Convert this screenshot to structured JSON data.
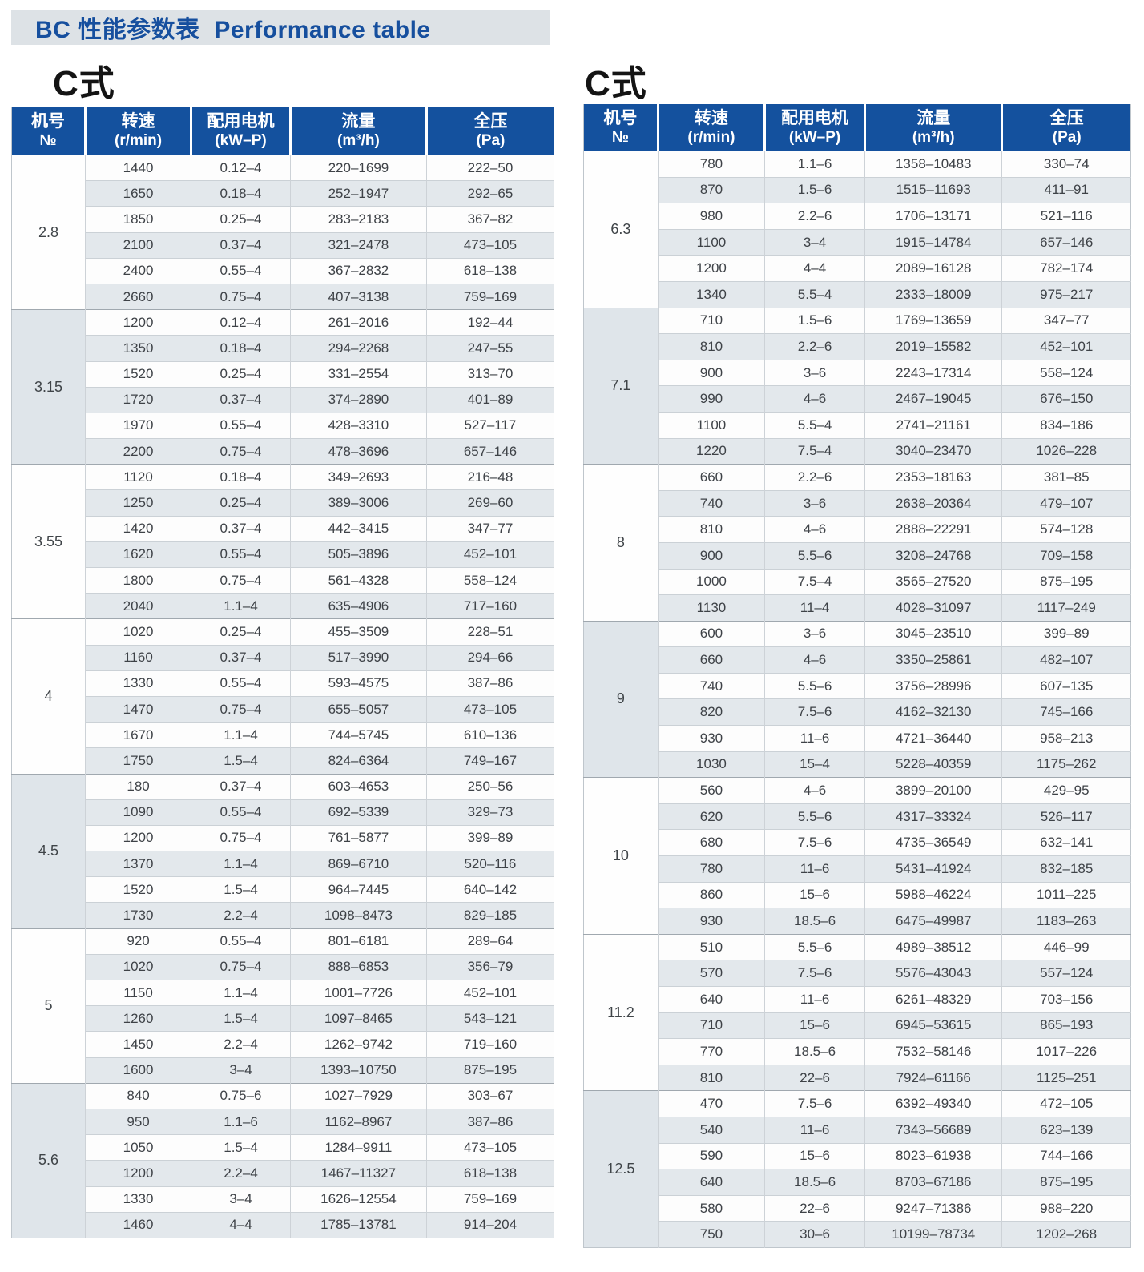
{
  "page": {
    "title": "BC 性能参数表  Performance table"
  },
  "columns": [
    {
      "zh": "机号",
      "sub": "№"
    },
    {
      "zh": "转速",
      "sub": "(r/min)"
    },
    {
      "zh": "配用电机",
      "sub": "(kW–P)"
    },
    {
      "zh": "流量",
      "sub": "(m³/h)"
    },
    {
      "zh": "全压",
      "sub": "(Pa)"
    }
  ],
  "colors": {
    "header_blue": "#14519e",
    "title_text_blue": "#164f9e",
    "title_bar_bg": "#dde2e6",
    "row_alt_bg": "#e3e8ec",
    "group_shade_bg": "#dfe5ea"
  },
  "tables": [
    {
      "heading": "C式",
      "sections": [
        {
          "no": "2.8",
          "shade": false,
          "rows": [
            [
              "1440",
              "0.12–4",
              "220–1699",
              "222–50"
            ],
            [
              "1650",
              "0.18–4",
              "252–1947",
              "292–65"
            ],
            [
              "1850",
              "0.25–4",
              "283–2183",
              "367–82"
            ],
            [
              "2100",
              "0.37–4",
              "321–2478",
              "473–105"
            ],
            [
              "2400",
              "0.55–4",
              "367–2832",
              "618–138"
            ],
            [
              "2660",
              "0.75–4",
              "407–3138",
              "759–169"
            ]
          ]
        },
        {
          "no": "3.15",
          "shade": true,
          "rows": [
            [
              "1200",
              "0.12–4",
              "261–2016",
              "192–44"
            ],
            [
              "1350",
              "0.18–4",
              "294–2268",
              "247–55"
            ],
            [
              "1520",
              "0.25–4",
              "331–2554",
              "313–70"
            ],
            [
              "1720",
              "0.37–4",
              "374–2890",
              "401–89"
            ],
            [
              "1970",
              "0.55–4",
              "428–3310",
              "527–117"
            ],
            [
              "2200",
              "0.75–4",
              "478–3696",
              "657–146"
            ]
          ]
        },
        {
          "no": "3.55",
          "shade": false,
          "rows": [
            [
              "1120",
              "0.18–4",
              "349–2693",
              "216–48"
            ],
            [
              "1250",
              "0.25–4",
              "389–3006",
              "269–60"
            ],
            [
              "1420",
              "0.37–4",
              "442–3415",
              "347–77"
            ],
            [
              "1620",
              "0.55–4",
              "505–3896",
              "452–101"
            ],
            [
              "1800",
              "0.75–4",
              "561–4328",
              "558–124"
            ],
            [
              "2040",
              "1.1–4",
              "635–4906",
              "717–160"
            ]
          ]
        },
        {
          "no": "4",
          "shade": false,
          "rows": [
            [
              "1020",
              "0.25–4",
              "455–3509",
              "228–51"
            ],
            [
              "1160",
              "0.37–4",
              "517–3990",
              "294–66"
            ],
            [
              "1330",
              "0.55–4",
              "593–4575",
              "387–86"
            ],
            [
              "1470",
              "0.75–4",
              "655–5057",
              "473–105"
            ],
            [
              "1670",
              "1.1–4",
              "744–5745",
              "610–136"
            ],
            [
              "1750",
              "1.5–4",
              "824–6364",
              "749–167"
            ]
          ]
        },
        {
          "no": "4.5",
          "shade": true,
          "rows": [
            [
              "180",
              "0.37–4",
              "603–4653",
              "250–56"
            ],
            [
              "1090",
              "0.55–4",
              "692–5339",
              "329–73"
            ],
            [
              "1200",
              "0.75–4",
              "761–5877",
              "399–89"
            ],
            [
              "1370",
              "1.1–4",
              "869–6710",
              "520–116"
            ],
            [
              "1520",
              "1.5–4",
              "964–7445",
              "640–142"
            ],
            [
              "1730",
              "2.2–4",
              "1098–8473",
              "829–185"
            ]
          ]
        },
        {
          "no": "5",
          "shade": false,
          "rows": [
            [
              "920",
              "0.55–4",
              "801–6181",
              "289–64"
            ],
            [
              "1020",
              "0.75–4",
              "888–6853",
              "356–79"
            ],
            [
              "1150",
              "1.1–4",
              "1001–7726",
              "452–101"
            ],
            [
              "1260",
              "1.5–4",
              "1097–8465",
              "543–121"
            ],
            [
              "1450",
              "2.2–4",
              "1262–9742",
              "719–160"
            ],
            [
              "1600",
              "3–4",
              "1393–10750",
              "875–195"
            ]
          ]
        },
        {
          "no": "5.6",
          "shade": true,
          "rows": [
            [
              "840",
              "0.75–6",
              "1027–7929",
              "303–67"
            ],
            [
              "950",
              "1.1–6",
              "1162–8967",
              "387–86"
            ],
            [
              "1050",
              "1.5–4",
              "1284–9911",
              "473–105"
            ],
            [
              "1200",
              "2.2–4",
              "1467–11327",
              "618–138"
            ],
            [
              "1330",
              "3–4",
              "1626–12554",
              "759–169"
            ],
            [
              "1460",
              "4–4",
              "1785–13781",
              "914–204"
            ]
          ]
        }
      ]
    },
    {
      "heading": "C式",
      "sections": [
        {
          "no": "6.3",
          "shade": false,
          "rows": [
            [
              "780",
              "1.1–6",
              "1358–10483",
              "330–74"
            ],
            [
              "870",
              "1.5–6",
              "1515–11693",
              "411–91"
            ],
            [
              "980",
              "2.2–6",
              "1706–13171",
              "521–116"
            ],
            [
              "1100",
              "3–4",
              "1915–14784",
              "657–146"
            ],
            [
              "1200",
              "4–4",
              "2089–16128",
              "782–174"
            ],
            [
              "1340",
              "5.5–4",
              "2333–18009",
              "975–217"
            ]
          ]
        },
        {
          "no": "7.1",
          "shade": true,
          "rows": [
            [
              "710",
              "1.5–6",
              "1769–13659",
              "347–77"
            ],
            [
              "810",
              "2.2–6",
              "2019–15582",
              "452–101"
            ],
            [
              "900",
              "3–6",
              "2243–17314",
              "558–124"
            ],
            [
              "990",
              "4–6",
              "2467–19045",
              "676–150"
            ],
            [
              "1100",
              "5.5–4",
              "2741–21161",
              "834–186"
            ],
            [
              "1220",
              "7.5–4",
              "3040–23470",
              "1026–228"
            ]
          ]
        },
        {
          "no": "8",
          "shade": false,
          "rows": [
            [
              "660",
              "2.2–6",
              "2353–18163",
              "381–85"
            ],
            [
              "740",
              "3–6",
              "2638–20364",
              "479–107"
            ],
            [
              "810",
              "4–6",
              "2888–22291",
              "574–128"
            ],
            [
              "900",
              "5.5–6",
              "3208–24768",
              "709–158"
            ],
            [
              "1000",
              "7.5–4",
              "3565–27520",
              "875–195"
            ],
            [
              "1130",
              "11–4",
              "4028–31097",
              "1117–249"
            ]
          ]
        },
        {
          "no": "9",
          "shade": true,
          "rows": [
            [
              "600",
              "3–6",
              "3045–23510",
              "399–89"
            ],
            [
              "660",
              "4–6",
              "3350–25861",
              "482–107"
            ],
            [
              "740",
              "5.5–6",
              "3756–28996",
              "607–135"
            ],
            [
              "820",
              "7.5–6",
              "4162–32130",
              "745–166"
            ],
            [
              "930",
              "11–6",
              "4721–36440",
              "958–213"
            ],
            [
              "1030",
              "15–4",
              "5228–40359",
              "1175–262"
            ]
          ]
        },
        {
          "no": "10",
          "shade": false,
          "rows": [
            [
              "560",
              "4–6",
              "3899–20100",
              "429–95"
            ],
            [
              "620",
              "5.5–6",
              "4317–33324",
              "526–117"
            ],
            [
              "680",
              "7.5–6",
              "4735–36549",
              "632–141"
            ],
            [
              "780",
              "11–6",
              "5431–41924",
              "832–185"
            ],
            [
              "860",
              "15–6",
              "5988–46224",
              "1011–225"
            ],
            [
              "930",
              "18.5–6",
              "6475–49987",
              "1183–263"
            ]
          ]
        },
        {
          "no": "11.2",
          "shade": false,
          "rows": [
            [
              "510",
              "5.5–6",
              "4989–38512",
              "446–99"
            ],
            [
              "570",
              "7.5–6",
              "5576–43043",
              "557–124"
            ],
            [
              "640",
              "11–6",
              "6261–48329",
              "703–156"
            ],
            [
              "710",
              "15–6",
              "6945–53615",
              "865–193"
            ],
            [
              "770",
              "18.5–6",
              "7532–58146",
              "1017–226"
            ],
            [
              "810",
              "22–6",
              "7924–61166",
              "1125–251"
            ]
          ]
        },
        {
          "no": "12.5",
          "shade": true,
          "rows": [
            [
              "470",
              "7.5–6",
              "6392–49340",
              "472–105"
            ],
            [
              "540",
              "11–6",
              "7343–56689",
              "623–139"
            ],
            [
              "590",
              "15–6",
              "8023–61938",
              "744–166"
            ],
            [
              "640",
              "18.5–6",
              "8703–67186",
              "875–195"
            ],
            [
              "580",
              "22–6",
              "9247–71386",
              "988–220"
            ],
            [
              "750",
              "30–6",
              "10199–78734",
              "1202–268"
            ]
          ]
        }
      ]
    }
  ]
}
